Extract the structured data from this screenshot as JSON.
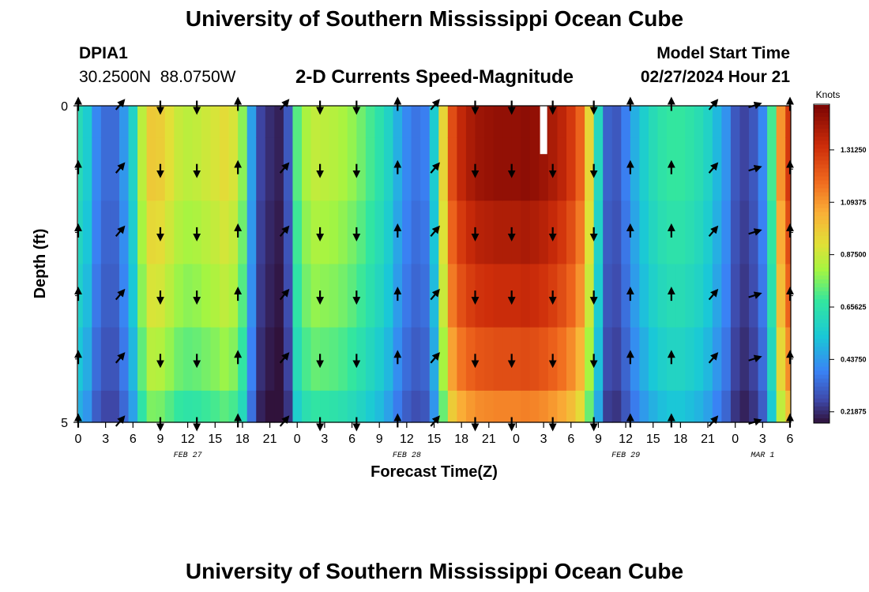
{
  "header": {
    "title": "University of Southern Mississippi Ocean Cube",
    "station": "DPIA1",
    "lat": "30.2500N",
    "lon": "88.0750W",
    "subtitle": "2-D Currents Speed-Magnitude",
    "model_start_label": "Model Start Time",
    "model_start_value": "02/27/2024 Hour 21"
  },
  "footer": {
    "title": "University of Southern Mississippi Ocean Cube"
  },
  "chart_data": {
    "type": "heatmap",
    "title": "2-D Currents Speed-Magnitude",
    "xlabel": "Forecast Time(Z)",
    "ylabel": "Depth (ft)",
    "x_start_hour": 0,
    "x_end_hour": 78,
    "x_ticks": [
      {
        "hour": 0,
        "label": "0"
      },
      {
        "hour": 3,
        "label": "3"
      },
      {
        "hour": 6,
        "label": "6"
      },
      {
        "hour": 9,
        "label": "9"
      },
      {
        "hour": 12,
        "label": "12"
      },
      {
        "hour": 15,
        "label": "15"
      },
      {
        "hour": 18,
        "label": "18"
      },
      {
        "hour": 21,
        "label": "21"
      },
      {
        "hour": 24,
        "label": "0"
      },
      {
        "hour": 27,
        "label": "3"
      },
      {
        "hour": 30,
        "label": "6"
      },
      {
        "hour": 33,
        "label": "9"
      },
      {
        "hour": 36,
        "label": "12"
      },
      {
        "hour": 39,
        "label": "15"
      },
      {
        "hour": 42,
        "label": "18"
      },
      {
        "hour": 45,
        "label": "21"
      },
      {
        "hour": 48,
        "label": "0"
      },
      {
        "hour": 51,
        "label": "3"
      },
      {
        "hour": 54,
        "label": "6"
      },
      {
        "hour": 57,
        "label": "9"
      },
      {
        "hour": 60,
        "label": "12"
      },
      {
        "hour": 63,
        "label": "15"
      },
      {
        "hour": 66,
        "label": "18"
      },
      {
        "hour": 69,
        "label": "21"
      },
      {
        "hour": 72,
        "label": "0"
      },
      {
        "hour": 75,
        "label": "3"
      },
      {
        "hour": 78,
        "label": "6"
      }
    ],
    "date_labels": [
      {
        "hour": 12,
        "label": "FEB 27"
      },
      {
        "hour": 36,
        "label": "FEB 28"
      },
      {
        "hour": 60,
        "label": "FEB 29"
      },
      {
        "hour": 75,
        "label": "MAR 1"
      }
    ],
    "y_range": [
      0,
      5
    ],
    "y_tick_labels": [
      {
        "depth": 0,
        "label": "0"
      },
      {
        "depth": 5,
        "label": "5"
      }
    ],
    "y_minor_ticks": [
      1,
      2,
      3,
      4
    ],
    "depth_levels": [
      0,
      1,
      2,
      3,
      4,
      5
    ],
    "colorbar": {
      "unit": "Knots",
      "min": 0.175,
      "max": 1.5,
      "tick_values": [
        0.21875,
        0.4375,
        0.65625,
        0.875,
        1.09375,
        1.3125
      ],
      "tick_labels": [
        "0.21875",
        "0.43750",
        "0.65625",
        "0.87500",
        "1.09375",
        "1.31250"
      ]
    },
    "missing_data": [
      {
        "hour": 51.0,
        "depth_from": 0,
        "depth_to": 1
      }
    ],
    "speed_profile": [
      {
        "hour": 0,
        "v": 0.62
      },
      {
        "hour": 1,
        "v": 0.55
      },
      {
        "hour": 2,
        "v": 0.4
      },
      {
        "hour": 3,
        "v": 0.34
      },
      {
        "hour": 4,
        "v": 0.34
      },
      {
        "hour": 5,
        "v": 0.43
      },
      {
        "hour": 6,
        "v": 0.58
      },
      {
        "hour": 7,
        "v": 0.85
      },
      {
        "hour": 8,
        "v": 0.98
      },
      {
        "hour": 9,
        "v": 0.97
      },
      {
        "hour": 10,
        "v": 0.92
      },
      {
        "hour": 11,
        "v": 0.87
      },
      {
        "hour": 12,
        "v": 0.85
      },
      {
        "hour": 13,
        "v": 0.86
      },
      {
        "hour": 14,
        "v": 0.88
      },
      {
        "hour": 15,
        "v": 0.9
      },
      {
        "hour": 16,
        "v": 0.93
      },
      {
        "hour": 17,
        "v": 0.9
      },
      {
        "hour": 18,
        "v": 0.78
      },
      {
        "hour": 19,
        "v": 0.45
      },
      {
        "hour": 20,
        "v": 0.26
      },
      {
        "hour": 21,
        "v": 0.22
      },
      {
        "hour": 22,
        "v": 0.2
      },
      {
        "hour": 23,
        "v": 0.3
      },
      {
        "hour": 24,
        "v": 0.72
      },
      {
        "hour": 25,
        "v": 0.82
      },
      {
        "hour": 26,
        "v": 0.86
      },
      {
        "hour": 27,
        "v": 0.85
      },
      {
        "hour": 28,
        "v": 0.84
      },
      {
        "hour": 29,
        "v": 0.82
      },
      {
        "hour": 30,
        "v": 0.79
      },
      {
        "hour": 31,
        "v": 0.75
      },
      {
        "hour": 32,
        "v": 0.7
      },
      {
        "hour": 33,
        "v": 0.65
      },
      {
        "hour": 34,
        "v": 0.58
      },
      {
        "hour": 35,
        "v": 0.48
      },
      {
        "hour": 36,
        "v": 0.4
      },
      {
        "hour": 37,
        "v": 0.36
      },
      {
        "hour": 38,
        "v": 0.38
      },
      {
        "hour": 39,
        "v": 0.55
      },
      {
        "hour": 40,
        "v": 0.95
      },
      {
        "hour": 41,
        "v": 1.25
      },
      {
        "hour": 42,
        "v": 1.35
      },
      {
        "hour": 43,
        "v": 1.4
      },
      {
        "hour": 44,
        "v": 1.43
      },
      {
        "hour": 45,
        "v": 1.44
      },
      {
        "hour": 46,
        "v": 1.45
      },
      {
        "hour": 47,
        "v": 1.45
      },
      {
        "hour": 48,
        "v": 1.45
      },
      {
        "hour": 49,
        "v": 1.46
      },
      {
        "hour": 50,
        "v": 1.45
      },
      {
        "hour": 51,
        "v": 1.43
      },
      {
        "hour": 52,
        "v": 1.4
      },
      {
        "hour": 53,
        "v": 1.36
      },
      {
        "hour": 54,
        "v": 1.3
      },
      {
        "hour": 55,
        "v": 1.2
      },
      {
        "hour": 56,
        "v": 0.95
      },
      {
        "hour": 57,
        "v": 0.6
      },
      {
        "hour": 58,
        "v": 0.32
      },
      {
        "hour": 59,
        "v": 0.3
      },
      {
        "hour": 60,
        "v": 0.38
      },
      {
        "hour": 61,
        "v": 0.48
      },
      {
        "hour": 62,
        "v": 0.56
      },
      {
        "hour": 63,
        "v": 0.62
      },
      {
        "hour": 64,
        "v": 0.66
      },
      {
        "hour": 65,
        "v": 0.68
      },
      {
        "hour": 66,
        "v": 0.68
      },
      {
        "hour": 67,
        "v": 0.66
      },
      {
        "hour": 68,
        "v": 0.63
      },
      {
        "hour": 69,
        "v": 0.58
      },
      {
        "hour": 70,
        "v": 0.5
      },
      {
        "hour": 71,
        "v": 0.42
      },
      {
        "hour": 72,
        "v": 0.3
      },
      {
        "hour": 73,
        "v": 0.26
      },
      {
        "hour": 74,
        "v": 0.3
      },
      {
        "hour": 75,
        "v": 0.4
      },
      {
        "hour": 76,
        "v": 0.7
      },
      {
        "hour": 77,
        "v": 1.1
      },
      {
        "hour": 78,
        "v": 1.3
      }
    ],
    "depth_factors": [
      1.0,
      1.0,
      0.96,
      0.92,
      0.86,
      0.78
    ],
    "arrows": [
      {
        "hour": 0,
        "dir": "up"
      },
      {
        "hour": 4.5,
        "dir": "up-right"
      },
      {
        "hour": 9,
        "dir": "down"
      },
      {
        "hour": 13,
        "dir": "down"
      },
      {
        "hour": 17.5,
        "dir": "up"
      },
      {
        "hour": 22.5,
        "dir": "up-right"
      },
      {
        "hour": 26.5,
        "dir": "down"
      },
      {
        "hour": 30.5,
        "dir": "down"
      },
      {
        "hour": 35,
        "dir": "up"
      },
      {
        "hour": 39,
        "dir": "up-right"
      },
      {
        "hour": 43.5,
        "dir": "down"
      },
      {
        "hour": 47.5,
        "dir": "down"
      },
      {
        "hour": 52,
        "dir": "down"
      },
      {
        "hour": 56.5,
        "dir": "down"
      },
      {
        "hour": 60.5,
        "dir": "up"
      },
      {
        "hour": 65,
        "dir": "up"
      },
      {
        "hour": 69.5,
        "dir": "up-right"
      },
      {
        "hour": 74,
        "dir": "right"
      },
      {
        "hour": 78,
        "dir": "up"
      }
    ]
  }
}
